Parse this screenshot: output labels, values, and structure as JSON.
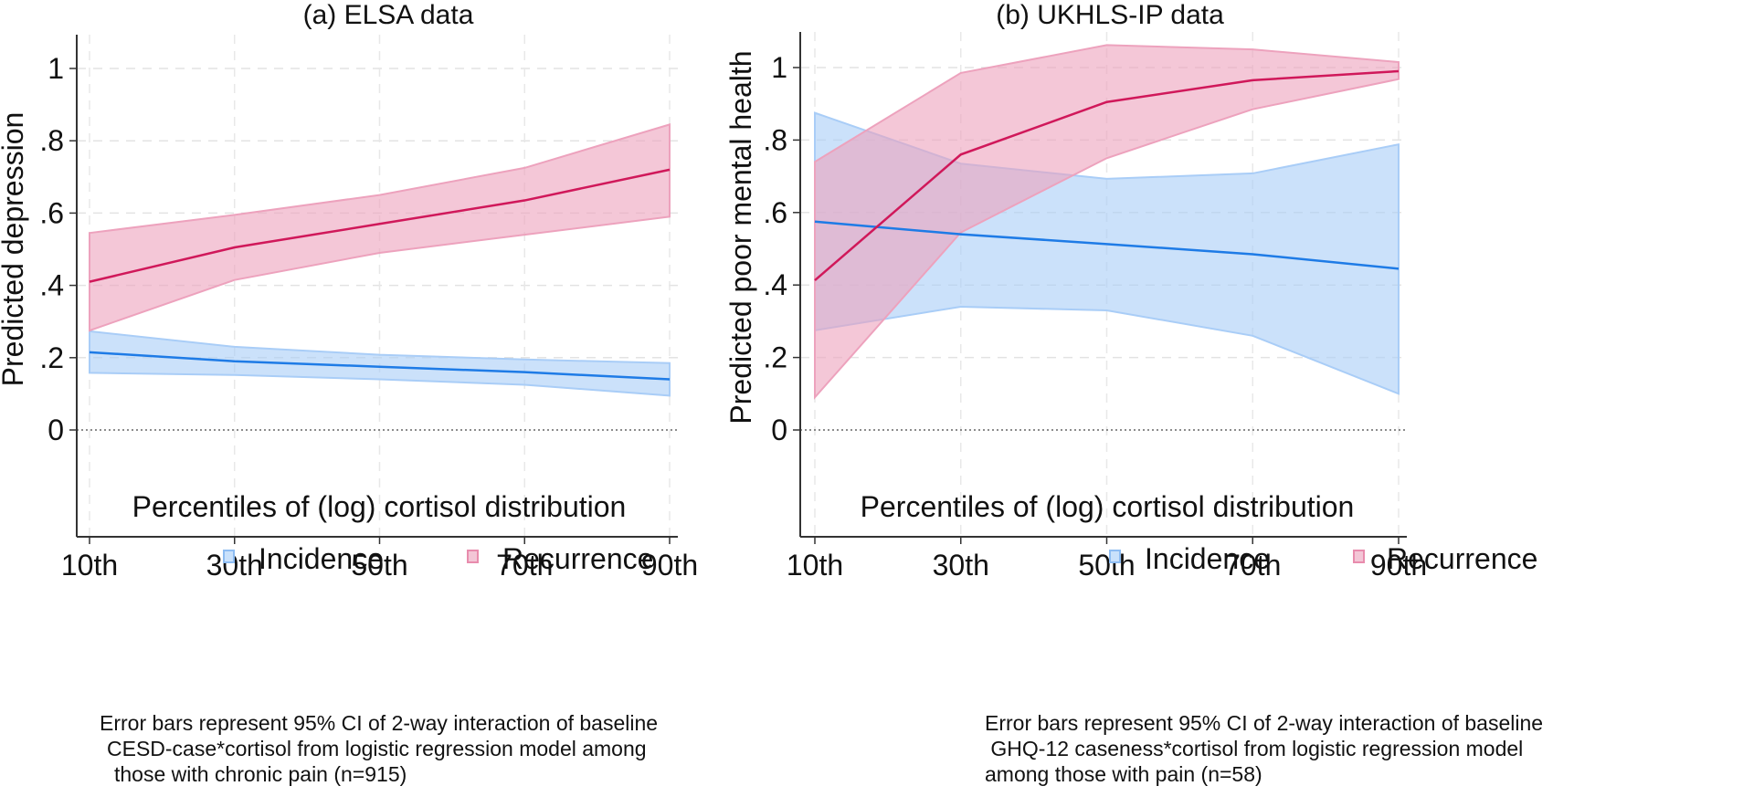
{
  "chart_data": [
    {
      "type": "line",
      "panel": "a",
      "title": "(a) ELSA data",
      "xlabel": "Percentiles of (log) cortisol distribution",
      "ylabel": "Predicted depression",
      "categories": [
        "10th",
        "30th",
        "50th",
        "70th",
        "90th"
      ],
      "x": [
        10,
        30,
        50,
        70,
        90
      ],
      "xlim": [
        10,
        90
      ],
      "ylim": [
        0,
        1.0
      ],
      "yticks": [
        0,
        0.2,
        0.4,
        0.6,
        0.8,
        1
      ],
      "ytick_labels": [
        "0",
        ".2",
        ".4",
        ".6",
        ".8",
        "1"
      ],
      "grid": true,
      "reference_line_y": 0,
      "series": [
        {
          "name": "Incidence",
          "color": "#1e7be6",
          "fill": "#a9cdf7",
          "values": [
            0.215,
            0.19,
            0.175,
            0.16,
            0.14
          ],
          "ci_upper": [
            0.273,
            0.23,
            0.208,
            0.195,
            0.185
          ],
          "ci_lower": [
            0.158,
            0.152,
            0.14,
            0.125,
            0.095
          ]
        },
        {
          "name": "Recurrence",
          "color": "#d0185a",
          "fill": "#eda2bd",
          "values": [
            0.41,
            0.505,
            0.57,
            0.635,
            0.72
          ],
          "ci_upper": [
            0.545,
            0.595,
            0.65,
            0.725,
            0.845
          ],
          "ci_lower": [
            0.275,
            0.415,
            0.49,
            0.54,
            0.59
          ]
        }
      ],
      "legend": [
        "Incidence",
        "Recurrence"
      ],
      "legend_position": "bottom",
      "note": [
        "Error bars represent 95% CI of 2-way interaction of baseline",
        "CESD-case*cortisol from logistic regression model among",
        "those with chronic pain (n=915)"
      ]
    },
    {
      "type": "line",
      "panel": "b",
      "title": "(b) UKHLS-IP data",
      "xlabel": "Percentiles of (log) cortisol distribution",
      "ylabel": "Predicted poor mental health",
      "categories": [
        "10th",
        "30th",
        "50th",
        "70th",
        "90th"
      ],
      "x": [
        10,
        30,
        50,
        70,
        90
      ],
      "xlim": [
        10,
        90
      ],
      "ylim": [
        0,
        1.08
      ],
      "yticks": [
        0,
        0.2,
        0.4,
        0.6,
        0.8,
        1
      ],
      "ytick_labels": [
        "0",
        ".2",
        ".4",
        ".6",
        ".8",
        "1"
      ],
      "grid": true,
      "reference_line_y": 0,
      "series": [
        {
          "name": "Incidence",
          "color": "#1e7be6",
          "fill": "#a9cdf7",
          "values": [
            0.575,
            0.54,
            0.513,
            0.485,
            0.445
          ],
          "ci_upper": [
            0.875,
            0.735,
            0.693,
            0.708,
            0.788
          ],
          "ci_lower": [
            0.275,
            0.34,
            0.33,
            0.26,
            0.1
          ]
        },
        {
          "name": "Recurrence",
          "color": "#d0185a",
          "fill": "#eda2bd",
          "values": [
            0.413,
            0.76,
            0.905,
            0.965,
            0.99
          ],
          "ci_upper": [
            0.74,
            0.985,
            1.062,
            1.05,
            1.015
          ],
          "ci_lower": [
            0.09,
            0.545,
            0.75,
            0.885,
            0.968
          ]
        }
      ],
      "legend": [
        "Incidence",
        "Recurrence"
      ],
      "legend_position": "bottom",
      "note": [
        "Error bars represent 95% CI of 2-way interaction of baseline",
        " GHQ-12 caseness*cortisol from logistic regression model",
        "among those with pain (n=58)"
      ]
    }
  ]
}
